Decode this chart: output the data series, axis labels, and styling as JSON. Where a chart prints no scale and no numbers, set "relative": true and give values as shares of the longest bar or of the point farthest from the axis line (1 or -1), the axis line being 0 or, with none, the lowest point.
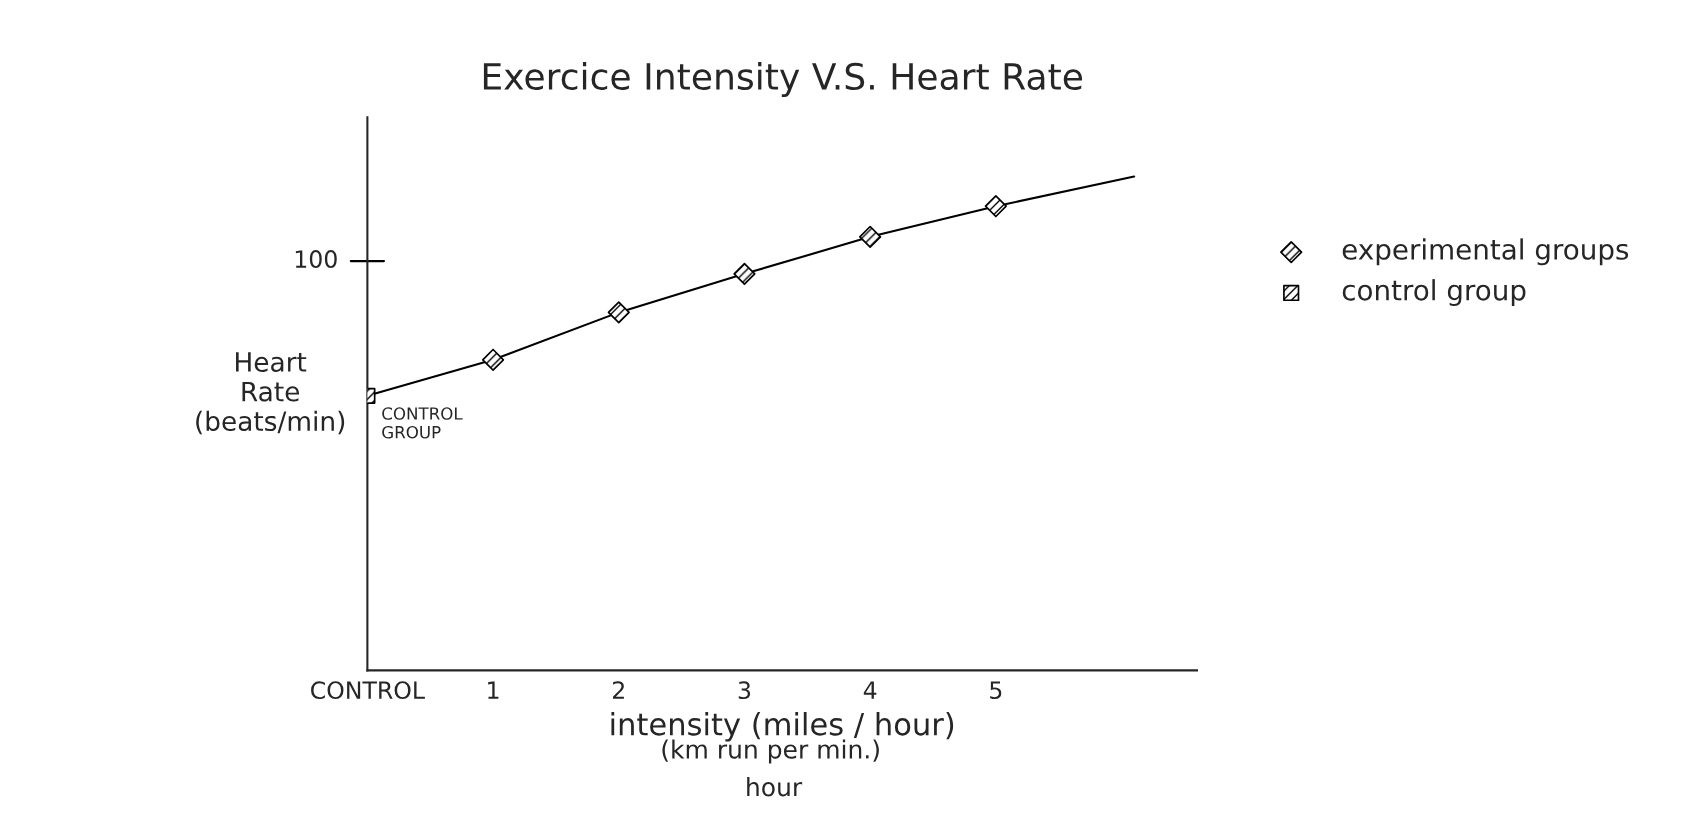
{
  "chart_data": {
    "type": "scatter",
    "title": "Exercice Intensity V.S. Heart Rate",
    "xlabel": "intensity (miles / hour)",
    "ylabel": "Heart\nRate\n(beats/min)",
    "relative": true,
    "xlim": [
      0,
      6.6
    ],
    "xticks": [
      {
        "value": 0,
        "label": "CONTROL"
      },
      1,
      2,
      3,
      4,
      5
    ],
    "legend": "right",
    "grid": false,
    "series": [
      {
        "name": "experimental groups",
        "marker": "diamond",
        "color": "#000000",
        "x": [
          1,
          2,
          3,
          4,
          5
        ],
        "values": [
          0.629,
          0.725,
          0.803,
          0.878,
          0.94
        ]
      },
      {
        "name": "control group",
        "marker": "square",
        "color": "#000000",
        "x": [
          0
        ],
        "values": [
          0.556
        ]
      },
      {
        "type": "line",
        "color": "#000000",
        "x": [
          0,
          1,
          2,
          3,
          4,
          5,
          6.1
        ],
        "values": [
          0.556,
          0.629,
          0.725,
          0.803,
          0.878,
          0.94,
          1.0
        ]
      }
    ],
    "annotations": [
      {
        "text": "CONTROL\nGROUP",
        "x": 0,
        "y": 0.556
      },
      "100",
      "(km run per min.)",
      "hour"
    ]
  }
}
